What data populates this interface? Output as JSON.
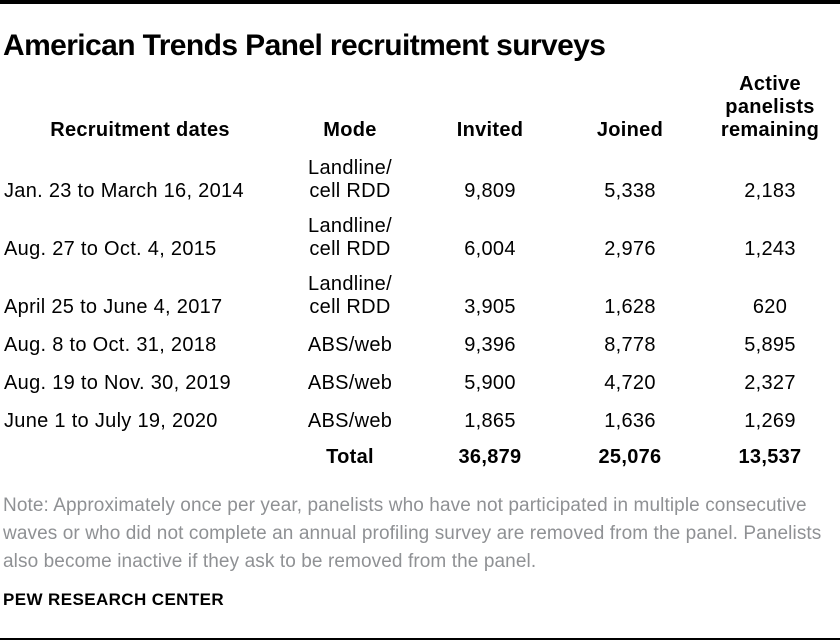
{
  "page": {
    "title": "American Trends Panel recruitment surveys",
    "note": "Note: Approximately once per year, panelists who have not participated in multiple consecutive waves or who did not complete an annual profiling survey are removed from the panel. Panelists also become inactive if they ask to be removed from the panel.",
    "source": "PEW RESEARCH CENTER"
  },
  "colors": {
    "text": "#000000",
    "note_gray": "#8f9194",
    "rule": "#000000",
    "background": "#ffffff"
  },
  "table": {
    "headers": {
      "dates": "Recruitment dates",
      "mode": "Mode",
      "invited": "Invited",
      "joined": "Joined",
      "active": "Active panelists remaining"
    },
    "rows": [
      {
        "dates": "Jan. 23 to March 16, 2014",
        "mode_lines": [
          "Landline/",
          "cell RDD"
        ],
        "invited": "9,809",
        "joined": "5,338",
        "active": "2,183"
      },
      {
        "dates": "Aug. 27 to Oct. 4, 2015",
        "mode_lines": [
          "Landline/",
          "cell RDD"
        ],
        "invited": "6,004",
        "joined": "2,976",
        "active": "1,243"
      },
      {
        "dates": "April 25 to June 4, 2017",
        "mode_lines": [
          "Landline/",
          "cell RDD"
        ],
        "invited": "3,905",
        "joined": "1,628",
        "active": "620"
      },
      {
        "dates": "Aug. 8 to Oct. 31, 2018",
        "mode_lines": [
          "ABS/web"
        ],
        "invited": "9,396",
        "joined": "8,778",
        "active": "5,895"
      },
      {
        "dates": "Aug. 19 to Nov. 30, 2019",
        "mode_lines": [
          "ABS/web"
        ],
        "invited": "5,900",
        "joined": "4,720",
        "active": "2,327"
      },
      {
        "dates": "June 1 to July 19, 2020",
        "mode_lines": [
          "ABS/web"
        ],
        "invited": "1,865",
        "joined": "1,636",
        "active": "1,269"
      }
    ],
    "total": {
      "label": "Total",
      "invited": "36,879",
      "joined": "25,076",
      "active": "13,537"
    }
  },
  "chart_data": {
    "type": "table",
    "title": "American Trends Panel recruitment surveys",
    "columns": [
      "Recruitment dates",
      "Mode",
      "Invited",
      "Joined",
      "Active panelists remaining"
    ],
    "rows": [
      [
        "Jan. 23 to March 16, 2014",
        "Landline/cell RDD",
        9809,
        5338,
        2183
      ],
      [
        "Aug. 27 to Oct. 4, 2015",
        "Landline/cell RDD",
        6004,
        2976,
        1243
      ],
      [
        "April 25 to June 4, 2017",
        "Landline/cell RDD",
        3905,
        1628,
        620
      ],
      [
        "Aug. 8 to Oct. 31, 2018",
        "ABS/web",
        9396,
        8778,
        5895
      ],
      [
        "Aug. 19 to Nov. 30, 2019",
        "ABS/web",
        5900,
        4720,
        2327
      ],
      [
        "June 1 to July 19, 2020",
        "ABS/web",
        1865,
        1636,
        1269
      ]
    ],
    "total_row": [
      "",
      "Total",
      36879,
      25076,
      13537
    ],
    "note": "Note: Approximately once per year, panelists who have not participated in multiple consecutive waves or who did not complete an annual profiling survey are removed from the panel. Panelists also become inactive if they ask to be removed from the panel.",
    "source": "PEW RESEARCH CENTER"
  }
}
